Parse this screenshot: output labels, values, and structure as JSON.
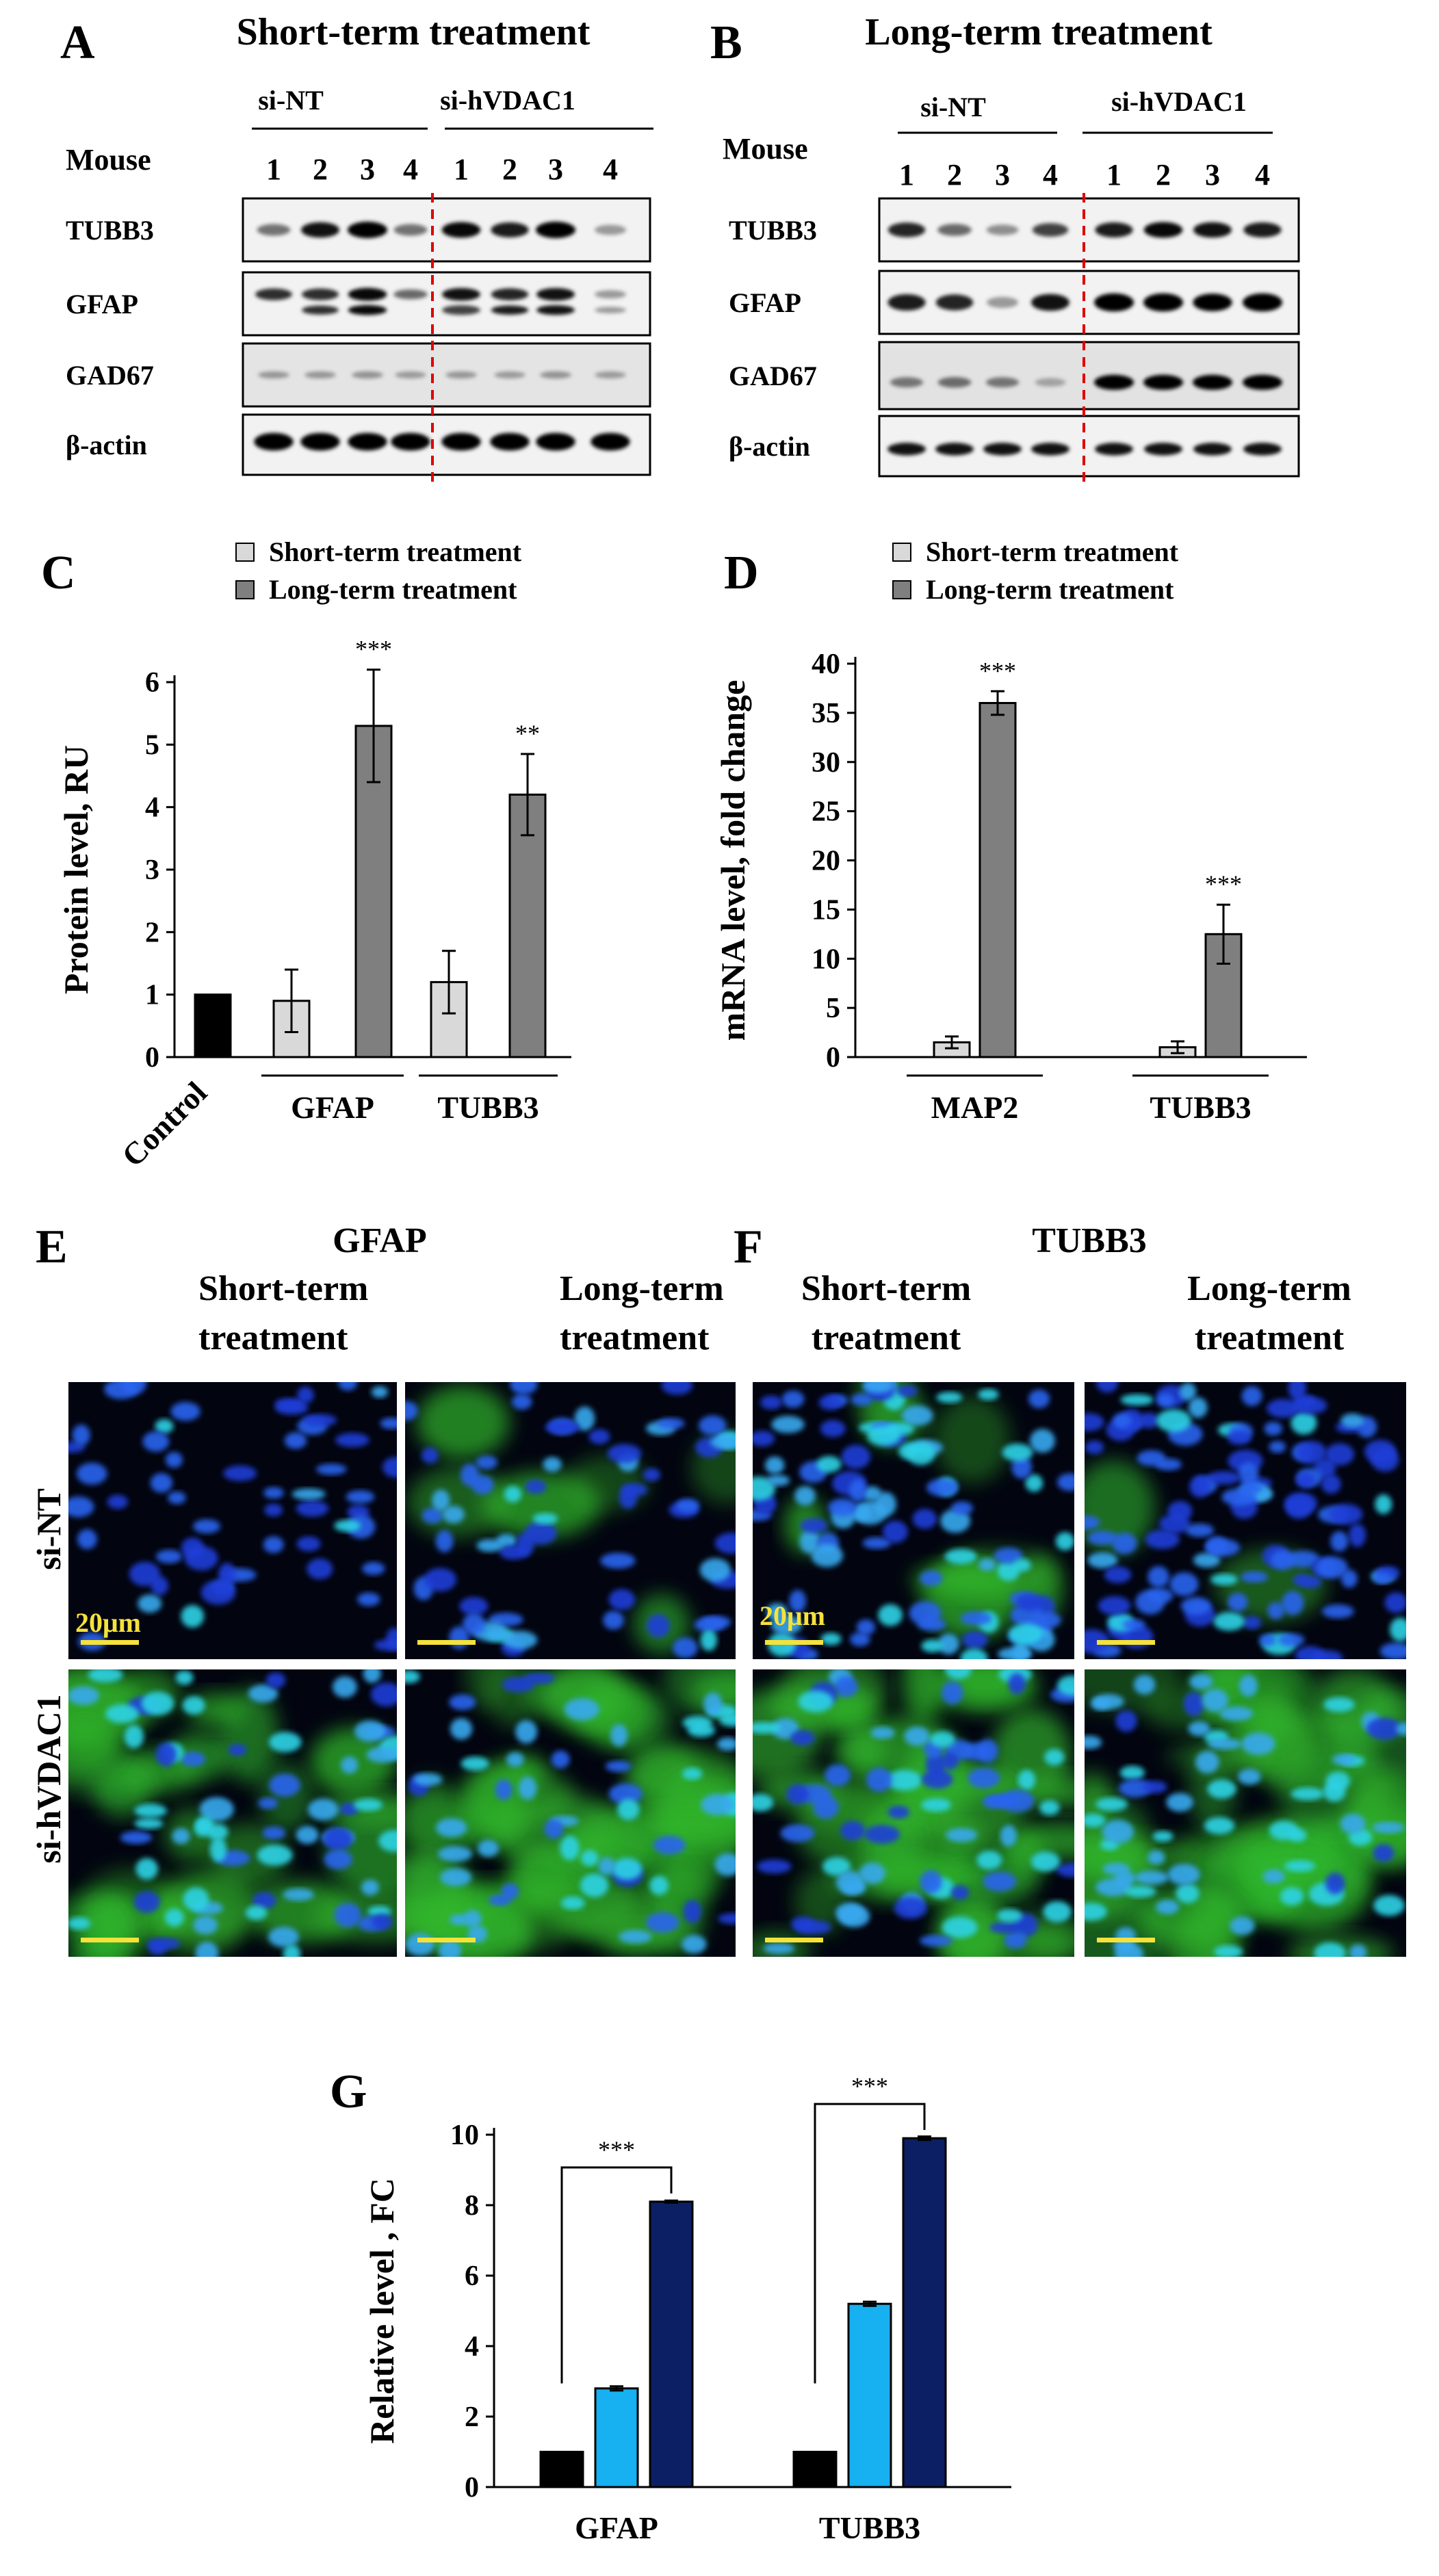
{
  "panels": {
    "A": {
      "letter": "A",
      "title": "Short-term treatment",
      "row_label": "Mouse",
      "group_left": "si-NT",
      "group_right": "si-hVDAC1",
      "lanes": [
        "1",
        "2",
        "3",
        "4",
        "1",
        "2",
        "3",
        "4"
      ],
      "proteins": [
        "TUBB3",
        "GFAP",
        "GAD67",
        "β-actin"
      ]
    },
    "B": {
      "letter": "B",
      "title": "Long-term treatment",
      "row_label": "Mouse",
      "group_left": "si-NT",
      "group_right": "si-hVDAC1",
      "lanes": [
        "1",
        "2",
        "3",
        "4",
        "1",
        "2",
        "3",
        "4"
      ],
      "proteins": [
        "TUBB3",
        "GFAP",
        "GAD67",
        "β-actin"
      ]
    },
    "C": {
      "letter": "C"
    },
    "D": {
      "letter": "D"
    },
    "E": {
      "letter": "E",
      "title": "GFAP",
      "col1": "Short-term treatment",
      "col2": "Long-term treatment",
      "row1": "si-NT",
      "row2": "si-hVDAC1",
      "scale_label": "20μm"
    },
    "F": {
      "letter": "F",
      "title": "TUBB3",
      "col1": "Short-term treatment",
      "col2": "Long-term treatment",
      "scale_label": "20μm"
    },
    "G": {
      "letter": "G"
    }
  },
  "chart_data": [
    {
      "id": "C",
      "type": "bar",
      "ylabel": "Protein level, RU",
      "ylim": [
        0,
        6
      ],
      "yticks": [
        0,
        1,
        2,
        3,
        4,
        5,
        6
      ],
      "legend": [
        "Short-term treatment",
        "Long-term treatment"
      ],
      "control": {
        "label": "Control",
        "value": 1.0,
        "color": "#000000"
      },
      "categories": [
        "GFAP",
        "TUBB3"
      ],
      "series": [
        {
          "name": "Short-term treatment",
          "color": "#d9d9d9",
          "values": [
            0.9,
            1.2
          ],
          "errors": [
            0.5,
            0.5
          ]
        },
        {
          "name": "Long-term treatment",
          "color": "#7f7f7f",
          "values": [
            5.3,
            4.2
          ],
          "errors": [
            0.9,
            0.65
          ]
        }
      ],
      "significance": [
        "***",
        "**"
      ]
    },
    {
      "id": "D",
      "type": "bar",
      "ylabel": "mRNA level, fold change",
      "ylim": [
        0,
        40
      ],
      "yticks": [
        0,
        5,
        10,
        15,
        20,
        25,
        30,
        35,
        40
      ],
      "legend": [
        "Short-term treatment",
        "Long-term treatment"
      ],
      "categories": [
        "MAP2",
        "TUBB3"
      ],
      "series": [
        {
          "name": "Short-term treatment",
          "color": "#d9d9d9",
          "values": [
            1.5,
            1.0
          ],
          "errors": [
            0.6,
            0.6
          ]
        },
        {
          "name": "Long-term treatment",
          "color": "#7f7f7f",
          "values": [
            36,
            12.5
          ],
          "errors": [
            1.2,
            3.0
          ]
        }
      ],
      "significance": [
        "***",
        "***"
      ]
    },
    {
      "id": "G",
      "type": "bar",
      "ylabel": "Relative level , FC",
      "ylim": [
        0,
        10
      ],
      "yticks": [
        0,
        2,
        4,
        6,
        8,
        10
      ],
      "categories": [
        "GFAP",
        "TUBB3"
      ],
      "series": [
        {
          "color": "#000000",
          "values": [
            1.0,
            1.0
          ],
          "errors": [
            0,
            0
          ]
        },
        {
          "color": "#17b0f0",
          "values": [
            2.8,
            5.2
          ],
          "errors": [
            0.06,
            0.06
          ]
        },
        {
          "color": "#0c1f64",
          "values": [
            8.1,
            9.9
          ],
          "errors": [
            0.03,
            0.05
          ]
        }
      ],
      "significance": [
        "***",
        "***"
      ]
    }
  ]
}
